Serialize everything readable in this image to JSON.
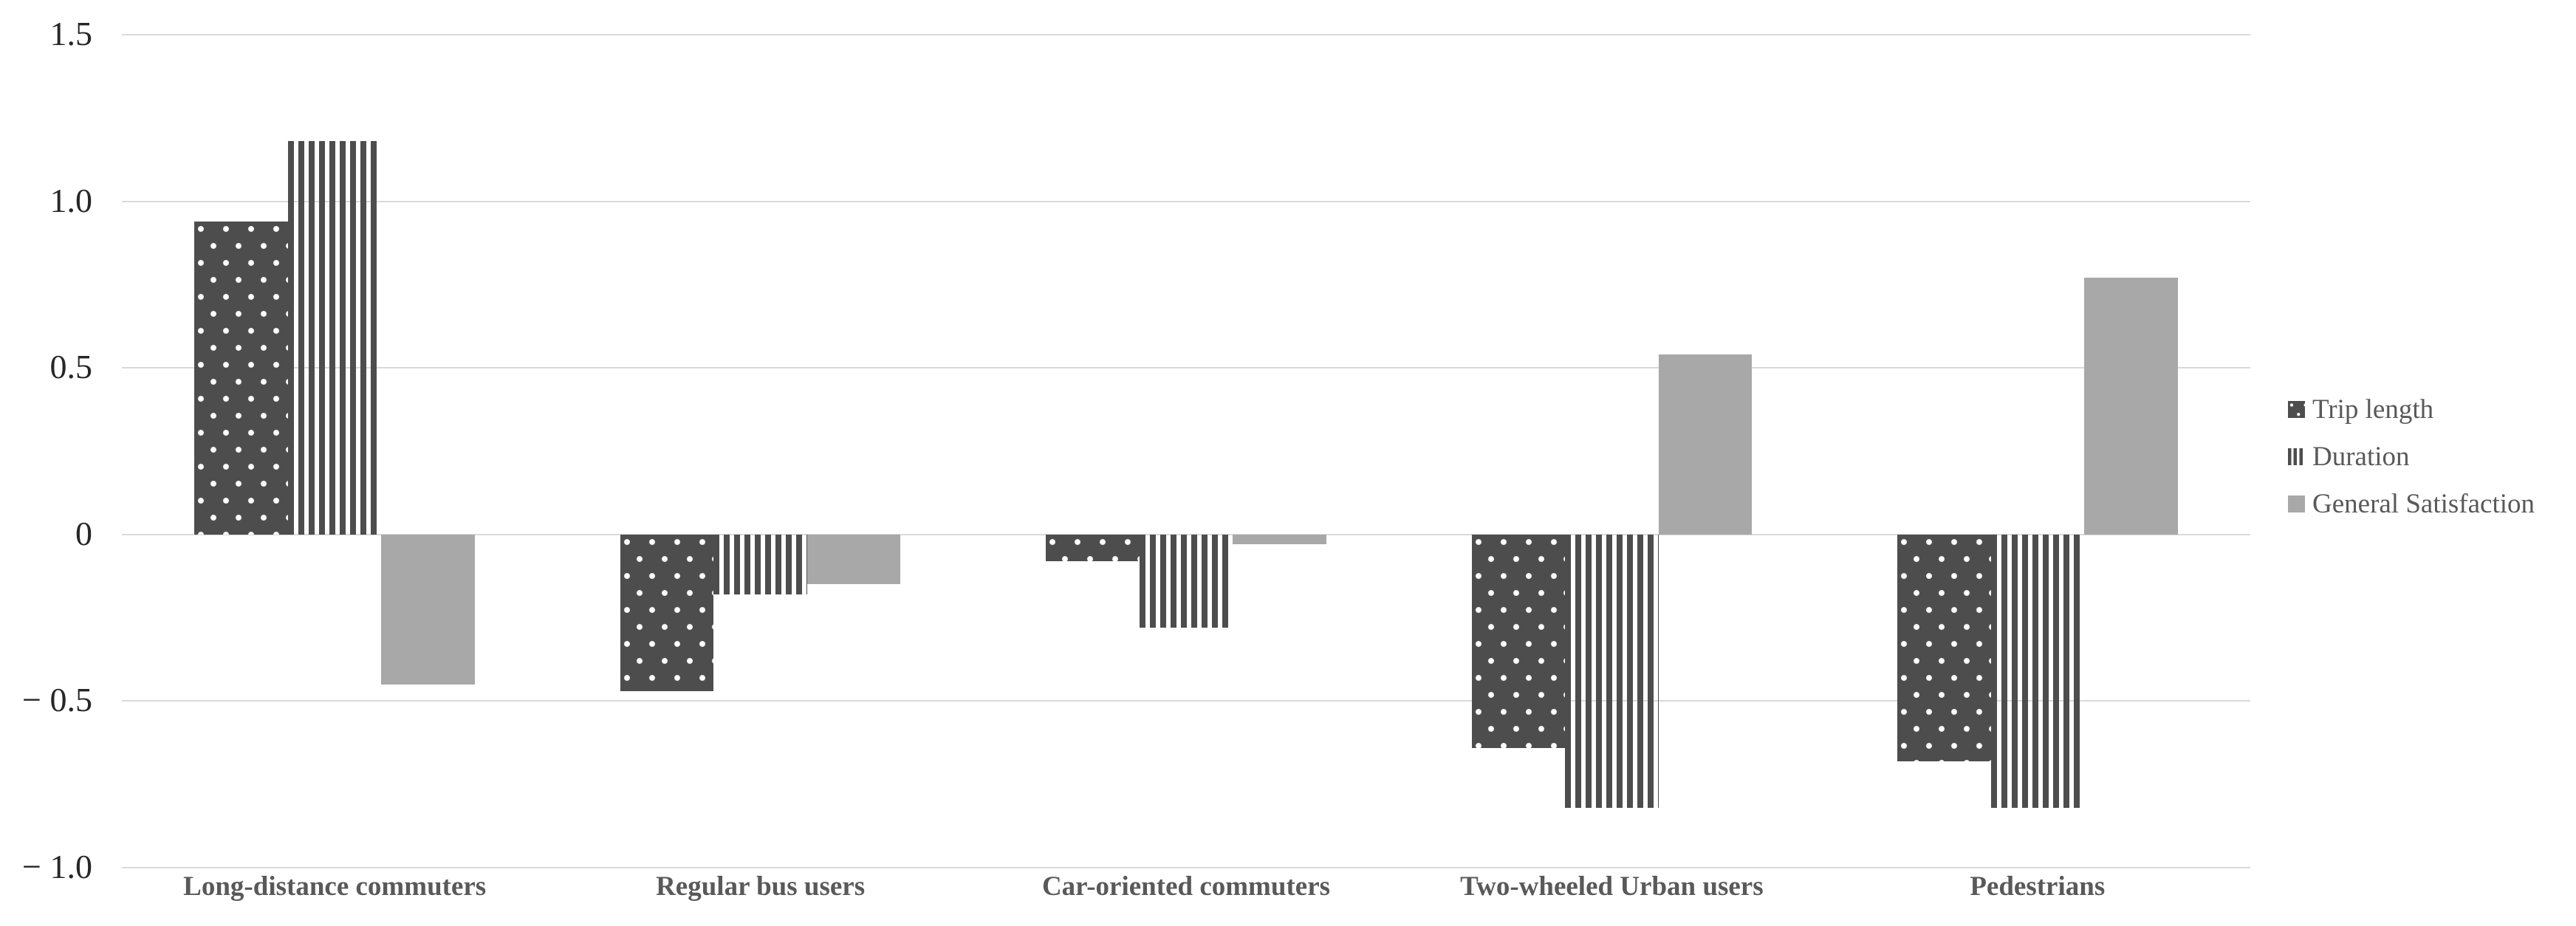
{
  "chart_data": {
    "type": "bar",
    "title": "",
    "xlabel": "",
    "ylabel": "",
    "categories": [
      "Long-distance commuters",
      "Regular bus users",
      "Car-oriented commuters",
      "Two-wheeled Urban users",
      "Pedestrians"
    ],
    "series": [
      {
        "name": "Trip length",
        "pattern": "dots",
        "values": [
          0.94,
          -0.47,
          -0.08,
          -0.64,
          -0.68
        ]
      },
      {
        "name": "Duration",
        "pattern": "stripes",
        "values": [
          1.18,
          -0.18,
          -0.28,
          -0.82,
          -0.82
        ]
      },
      {
        "name": "General Satisfaction",
        "pattern": "solid",
        "values": [
          -0.45,
          -0.15,
          -0.03,
          0.54,
          0.77
        ]
      }
    ],
    "y_ticks": [
      {
        "label": "1.5",
        "value": 1.5
      },
      {
        "label": "1.0",
        "value": 1.0
      },
      {
        "label": "0.5",
        "value": 0.5
      },
      {
        "label": "0",
        "value": 0.0
      },
      {
        "label": "− 0.5",
        "value": -0.5
      },
      {
        "label": "− 1.0",
        "value": -1.0
      }
    ],
    "ylim": [
      -1.0,
      1.5
    ],
    "grid": true,
    "legend_position": "right"
  },
  "colors": {
    "bar_dark": "#4d4d4d",
    "bar_gray": "#a8a8a8",
    "pattern_white": "#ffffff",
    "gridline": "#d9d9d9",
    "axis_tick_text": "#262626",
    "category_text": "#595959",
    "legend_text": "#595959"
  }
}
